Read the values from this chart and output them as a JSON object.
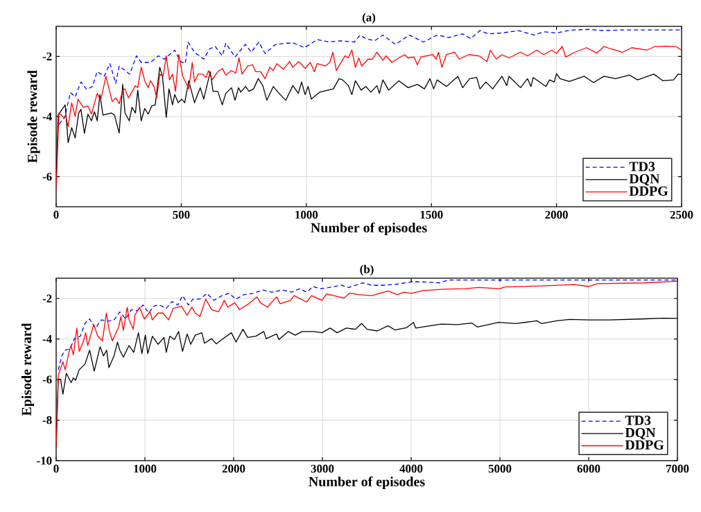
{
  "chart_data": [
    {
      "type": "line",
      "title": "(a)",
      "xlabel": "Number of episodes",
      "ylabel": "Episode reward",
      "xlim": [
        0,
        2500
      ],
      "ylim": [
        -7,
        -1
      ],
      "xticks": [
        0,
        500,
        1000,
        1500,
        2000,
        2500
      ],
      "yticks": [
        -6,
        -4,
        -2
      ],
      "grid": true,
      "legend": "bottom right",
      "marker": "none",
      "series": [
        {
          "name": "TD3",
          "color": "#0000ff",
          "line_style": "dashed",
          "x": [
            11,
            34,
            57,
            76,
            99,
            122,
            145,
            164,
            192,
            215,
            238,
            252,
            294,
            321,
            340,
            377,
            409,
            432,
            474,
            497,
            516,
            527,
            553,
            590,
            613,
            636,
            664,
            678,
            715,
            756,
            780,
            810,
            835,
            877,
            923,
            951,
            993,
            1043,
            1090,
            1136,
            1192,
            1215,
            1238,
            1273,
            1306,
            1356,
            1412,
            1468,
            1523,
            1569,
            1625,
            1657,
            1694,
            1727,
            1782,
            1847,
            1912,
            1949,
            2000,
            2051,
            2125,
            2190,
            2264,
            2356,
            2500
          ],
          "values": [
            -4.26,
            -4.03,
            -3.2,
            -3.35,
            -2.85,
            -3.1,
            -3.0,
            -2.5,
            -2.66,
            -2.24,
            -2.9,
            -2.32,
            -2.59,
            -1.98,
            -2.2,
            -2.2,
            -1.98,
            -2.09,
            -1.79,
            -2.17,
            -2.24,
            -1.52,
            -1.86,
            -2.09,
            -1.75,
            -1.67,
            -1.98,
            -1.56,
            -2.02,
            -1.6,
            -1.86,
            -1.52,
            -1.9,
            -1.6,
            -1.56,
            -1.56,
            -1.71,
            -1.44,
            -1.52,
            -1.48,
            -1.52,
            -1.29,
            -1.41,
            -1.48,
            -1.29,
            -1.6,
            -1.29,
            -1.52,
            -1.29,
            -1.37,
            -1.25,
            -1.41,
            -1.14,
            -1.25,
            -1.22,
            -1.14,
            -1.29,
            -1.18,
            -1.22,
            -1.13,
            -1.1,
            -1.14,
            -1.12,
            -1.12,
            -1.12
          ]
        },
        {
          "name": "DQN",
          "color": "#000000",
          "line_style": "solid",
          "x": [
            0,
            8,
            36,
            48,
            62,
            76,
            90,
            99,
            113,
            127,
            141,
            153,
            164,
            175,
            187,
            220,
            233,
            252,
            266,
            275,
            292,
            303,
            317,
            326,
            340,
            354,
            368,
            382,
            396,
            414,
            425,
            440,
            451,
            465,
            474,
            488,
            502,
            514,
            530,
            553,
            576,
            590,
            616,
            627,
            646,
            664,
            678,
            701,
            715,
            729,
            738,
            757,
            771,
            789,
            808,
            826,
            842,
            868,
            891,
            918,
            946,
            968,
            981,
            995,
            1007,
            1020,
            1053,
            1108,
            1131,
            1145,
            1168,
            1182,
            1196,
            1219,
            1238,
            1258,
            1282,
            1292,
            1306,
            1329,
            1370,
            1407,
            1444,
            1472,
            1494,
            1509,
            1523,
            1560,
            1606,
            1625,
            1653,
            1681,
            1694,
            1718,
            1745,
            1782,
            1801,
            1810,
            1856,
            1884,
            1898,
            1907,
            1958,
            1972,
            1991,
            2000,
            2014,
            2051,
            2111,
            2148,
            2190,
            2236,
            2292,
            2324,
            2389,
            2426,
            2468,
            2486,
            2500
          ],
          "values": [
            -6.2,
            -3.95,
            -3.61,
            -4.87,
            -4.37,
            -4.71,
            -3.88,
            -3.76,
            -4.56,
            -3.92,
            -4.14,
            -3.84,
            -4.14,
            -3.27,
            -3.95,
            -3.88,
            -3.95,
            -4.55,
            -2.93,
            -3.88,
            -4.14,
            -3.69,
            -3.88,
            -3.12,
            -4.14,
            -3.73,
            -3.92,
            -3.65,
            -3.61,
            -2.36,
            -2.66,
            -4.03,
            -3.08,
            -3.61,
            -3.27,
            -3.54,
            -3.42,
            -3.54,
            -2.81,
            -3.54,
            -3.04,
            -3.42,
            -2.51,
            -3.16,
            -3.16,
            -3.61,
            -3.23,
            -3.04,
            -3.46,
            -3.04,
            -3.19,
            -3.0,
            -3.16,
            -3.08,
            -2.74,
            -2.97,
            -3.46,
            -3.0,
            -3.23,
            -3.46,
            -2.97,
            -3.23,
            -2.85,
            -3.27,
            -3.0,
            -3.42,
            -3.19,
            -3.08,
            -2.74,
            -2.78,
            -2.97,
            -3.27,
            -2.81,
            -3.12,
            -3.0,
            -3.19,
            -2.97,
            -3.23,
            -2.78,
            -3.12,
            -2.81,
            -3.04,
            -2.93,
            -3.08,
            -2.74,
            -3.08,
            -2.78,
            -3.0,
            -2.66,
            -3.04,
            -2.74,
            -2.7,
            -3.08,
            -2.85,
            -3.08,
            -2.66,
            -2.97,
            -2.66,
            -3.04,
            -2.74,
            -3.0,
            -2.7,
            -3.0,
            -2.78,
            -2.85,
            -2.57,
            -2.74,
            -2.83,
            -2.66,
            -2.87,
            -2.66,
            -2.74,
            -2.62,
            -2.78,
            -2.59,
            -2.81,
            -2.78,
            -2.59,
            -2.6
          ]
        },
        {
          "name": "DDPG",
          "color": "#ff0000",
          "line_style": "solid",
          "x": [
            0,
            11,
            30,
            39,
            48,
            62,
            76,
            87,
            108,
            127,
            141,
            164,
            178,
            199,
            224,
            238,
            252,
            266,
            275,
            289,
            317,
            326,
            340,
            354,
            368,
            377,
            391,
            402,
            414,
            428,
            440,
            453,
            465,
            477,
            490,
            506,
            530,
            544,
            553,
            567,
            585,
            599,
            609,
            623,
            646,
            664,
            678,
            701,
            718,
            731,
            743,
            766,
            785,
            798,
            817,
            835,
            854,
            868,
            882,
            909,
            933,
            946,
            970,
            995,
            1016,
            1032,
            1043,
            1076,
            1094,
            1106,
            1120,
            1136,
            1155,
            1168,
            1182,
            1196,
            1210,
            1221,
            1247,
            1264,
            1282,
            1306,
            1319,
            1342,
            1370,
            1393,
            1407,
            1431,
            1444,
            1458,
            1505,
            1519,
            1528,
            1542,
            1560,
            1593,
            1611,
            1648,
            1690,
            1722,
            1736,
            1759,
            1782,
            1810,
            1856,
            1884,
            1921,
            1949,
            1981,
            2000,
            2023,
            2037,
            2074,
            2120,
            2162,
            2190,
            2218,
            2264,
            2301,
            2361,
            2393,
            2440,
            2477,
            2500
          ],
          "values": [
            -6.4,
            -3.88,
            -4.03,
            -3.99,
            -4.33,
            -3.54,
            -3.99,
            -3.42,
            -3.69,
            -3.65,
            -3.92,
            -3.23,
            -3.46,
            -2.66,
            -3.5,
            -3.38,
            -3.57,
            -3.12,
            -3.08,
            -3.38,
            -2.97,
            -3.04,
            -2.36,
            -2.81,
            -3.04,
            -2.81,
            -3.0,
            -3.38,
            -2.59,
            -2.66,
            -1.98,
            -2.78,
            -2.59,
            -3.16,
            -1.94,
            -2.66,
            -3.08,
            -2.2,
            -2.85,
            -2.59,
            -2.59,
            -2.7,
            -2.47,
            -2.78,
            -2.51,
            -2.4,
            -2.62,
            -2.47,
            -2.55,
            -2.05,
            -2.59,
            -2.32,
            -2.28,
            -2.51,
            -2.51,
            -2.74,
            -2.36,
            -2.47,
            -2.24,
            -2.43,
            -2.17,
            -2.36,
            -2.17,
            -2.4,
            -2.2,
            -2.51,
            -2.24,
            -2.32,
            -2.2,
            -1.86,
            -2.47,
            -2.24,
            -1.98,
            -2.05,
            -1.79,
            -2.36,
            -2.05,
            -2.32,
            -2.09,
            -2.09,
            -1.86,
            -2.13,
            -1.98,
            -2.2,
            -2.05,
            -1.94,
            -2.05,
            -2.02,
            -2.28,
            -2.02,
            -1.94,
            -2.09,
            -1.86,
            -2.36,
            -1.94,
            -1.86,
            -2.09,
            -1.94,
            -1.98,
            -2.17,
            -1.79,
            -2.09,
            -1.94,
            -2.05,
            -1.86,
            -1.98,
            -1.79,
            -1.94,
            -1.79,
            -1.9,
            -1.67,
            -2.02,
            -1.86,
            -1.71,
            -1.89,
            -1.67,
            -1.75,
            -1.86,
            -1.71,
            -1.79,
            -1.67,
            -1.66,
            -1.67,
            -1.79
          ]
        }
      ]
    },
    {
      "type": "line",
      "title": "(b)",
      "xlabel": "Number of episodes",
      "ylabel": "Episode reward",
      "xlim": [
        0,
        7000
      ],
      "ylim": [
        -10,
        -1
      ],
      "xticks": [
        0,
        1000,
        2000,
        3000,
        4000,
        5000,
        6000,
        7000
      ],
      "yticks": [
        -10,
        -8,
        -6,
        -4,
        -2
      ],
      "grid": true,
      "legend": "bottom right",
      "marker": "none",
      "series": [
        {
          "name": "TD3",
          "color": "#0000ff",
          "line_style": "dashed",
          "x": [
            24,
            63,
            102,
            154,
            207,
            272,
            325,
            377,
            442,
            508,
            586,
            652,
            717,
            783,
            848,
            914,
            979,
            1045,
            1097,
            1162,
            1241,
            1306,
            1372,
            1424,
            1490,
            1542,
            1620,
            1699,
            1777,
            1869,
            1948,
            2026,
            2118,
            2223,
            2327,
            2432,
            2550,
            2654,
            2746,
            2825,
            2890,
            2982,
            3113,
            3217,
            3296,
            3453,
            3557,
            3685,
            3843,
            4000,
            4131,
            4315,
            4420,
            4787,
            5575,
            6362,
            7000
          ],
          "values": [
            -5.52,
            -4.83,
            -4.55,
            -4.49,
            -3.98,
            -3.86,
            -3.23,
            -3.01,
            -3.46,
            -3.06,
            -3.12,
            -3.06,
            -2.66,
            -3.01,
            -2.55,
            -2.61,
            -2.32,
            -2.72,
            -2.38,
            -2.32,
            -2.49,
            -2.15,
            -2.32,
            -1.86,
            -2.32,
            -2.03,
            -2.03,
            -1.75,
            -2.09,
            -1.86,
            -1.75,
            -2.03,
            -1.81,
            -1.75,
            -1.58,
            -1.69,
            -1.58,
            -1.69,
            -1.52,
            -1.69,
            -1.41,
            -1.52,
            -1.43,
            -1.35,
            -1.46,
            -1.23,
            -1.35,
            -1.35,
            -1.29,
            -1.18,
            -1.18,
            -1.23,
            -1.09,
            -1.09,
            -1.09,
            -1.09,
            -1.09
          ]
        },
        {
          "name": "DQN",
          "color": "#000000",
          "line_style": "solid",
          "x": [
            0,
            24,
            50,
            76,
            115,
            168,
            194,
            220,
            259,
            325,
            377,
            429,
            495,
            534,
            569,
            594,
            652,
            691,
            717,
            757,
            822,
            874,
            927,
            966,
            1005,
            1032,
            1084,
            1149,
            1215,
            1241,
            1280,
            1332,
            1379,
            1424,
            1476,
            1516,
            1568,
            1641,
            1672,
            1751,
            1803,
            1882,
            1974,
            2026,
            2105,
            2157,
            2249,
            2340,
            2366,
            2484,
            2510,
            2615,
            2694,
            2772,
            2903,
            2995,
            3086,
            3165,
            3270,
            3374,
            3440,
            3505,
            3619,
            3738,
            3816,
            3948,
            4026,
            4052,
            4210,
            4341,
            4525,
            4682,
            4748,
            4984,
            5181,
            5417,
            5470,
            5640,
            5785,
            5995,
            6231,
            6598,
            6835,
            7000
          ],
          "values": [
            -9.3,
            -5.98,
            -5.98,
            -6.72,
            -5.69,
            -6.15,
            -5.92,
            -6.03,
            -5.52,
            -5.23,
            -4.55,
            -5.58,
            -4.38,
            -4.83,
            -4.55,
            -5.41,
            -4.83,
            -4.15,
            -4.55,
            -4.89,
            -4.32,
            -4.66,
            -3.69,
            -4.72,
            -3.81,
            -4.72,
            -3.86,
            -4.26,
            -3.92,
            -4.66,
            -3.86,
            -4.03,
            -3.63,
            -4.61,
            -3.75,
            -4.26,
            -3.81,
            -3.69,
            -4.21,
            -3.98,
            -4.24,
            -3.98,
            -3.69,
            -4.15,
            -3.52,
            -3.92,
            -3.86,
            -3.63,
            -3.98,
            -3.75,
            -4.03,
            -3.63,
            -3.81,
            -3.63,
            -3.63,
            -3.69,
            -3.46,
            -3.69,
            -3.46,
            -3.52,
            -3.23,
            -3.52,
            -3.6,
            -3.35,
            -3.55,
            -3.44,
            -3.18,
            -3.46,
            -3.35,
            -3.26,
            -3.29,
            -3.21,
            -3.41,
            -3.18,
            -3.24,
            -3.1,
            -3.24,
            -3.1,
            -3.03,
            -3.06,
            -3.06,
            -3.01,
            -2.97,
            -2.98
          ]
        },
        {
          "name": "DDPG",
          "color": "#ff0000",
          "line_style": "solid",
          "x": [
            0,
            24,
            76,
            102,
            141,
            168,
            194,
            233,
            259,
            299,
            333,
            356,
            424,
            469,
            521,
            566,
            600,
            634,
            704,
            730,
            757,
            801,
            822,
            869,
            887,
            940,
            992,
            1058,
            1084,
            1149,
            1202,
            1267,
            1320,
            1411,
            1476,
            1529,
            1568,
            1620,
            1686,
            1751,
            1830,
            1895,
            1934,
            2013,
            2065,
            2170,
            2262,
            2301,
            2380,
            2484,
            2523,
            2641,
            2681,
            2733,
            2825,
            2877,
            2995,
            3047,
            3243,
            3309,
            3400,
            3557,
            3738,
            3843,
            3921,
            4000,
            4131,
            4367,
            4604,
            4761,
            5000,
            5052,
            5470,
            5837,
            6000,
            6100,
            6625,
            7000
          ],
          "values": [
            -9.3,
            -5.8,
            -5.12,
            -5.52,
            -4.72,
            -4.32,
            -4.78,
            -3.46,
            -4.61,
            -4.21,
            -3.69,
            -4.32,
            -3.29,
            -3.86,
            -4.09,
            -2.72,
            -3.63,
            -4.09,
            -3.41,
            -2.89,
            -3.58,
            -2.43,
            -3.06,
            -3.52,
            -2.83,
            -2.43,
            -3.01,
            -2.66,
            -3.06,
            -2.72,
            -2.72,
            -3.06,
            -2.49,
            -2.38,
            -2.83,
            -2.43,
            -2.72,
            -2.89,
            -2.03,
            -2.55,
            -2.66,
            -2.09,
            -2.43,
            -2.21,
            -2.55,
            -2.26,
            -1.92,
            -2.21,
            -2.43,
            -1.92,
            -2.26,
            -2.09,
            -1.86,
            -1.98,
            -2.18,
            -1.86,
            -2.09,
            -1.77,
            -1.98,
            -1.73,
            -1.81,
            -1.86,
            -1.63,
            -1.81,
            -1.69,
            -1.75,
            -1.61,
            -1.54,
            -1.52,
            -1.46,
            -1.52,
            -1.43,
            -1.38,
            -1.31,
            -1.41,
            -1.27,
            -1.23,
            -1.15
          ]
        }
      ]
    }
  ]
}
